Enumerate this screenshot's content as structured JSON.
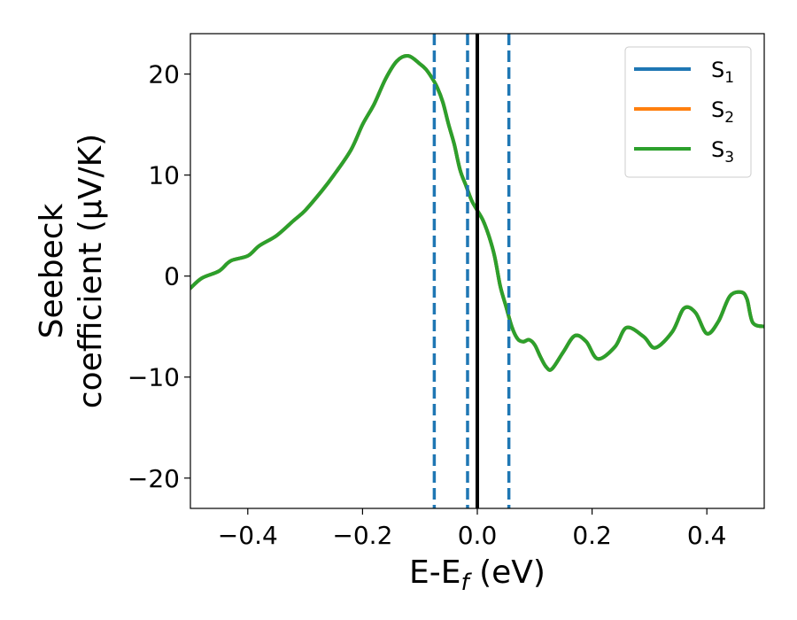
{
  "chart_data": {
    "type": "line",
    "xlim": [
      -0.5,
      0.5
    ],
    "ylim": [
      -23,
      24
    ],
    "x_ticks": [
      -0.4,
      -0.2,
      0.0,
      0.2,
      0.4
    ],
    "x_tick_labels": [
      "−0.4",
      "−0.2",
      "0.0",
      "0.2",
      "0.4"
    ],
    "y_ticks": [
      -20,
      -10,
      0,
      10,
      20
    ],
    "y_tick_labels": [
      "−20",
      "−10",
      "0",
      "10",
      "20"
    ],
    "xlabel": "E-E",
    "xlabel_sub": "f",
    "xlabel_unit": " (eV)",
    "ylabel_line1": "Seebeck",
    "ylabel_line2": "coefficient  (μV/K)",
    "legend_position": "top-right",
    "grid": false,
    "series": [
      {
        "name": "S",
        "sub": "1",
        "color": "#1f77b4"
      },
      {
        "name": "S",
        "sub": "2",
        "color": "#ff7f0e"
      },
      {
        "name": "S",
        "sub": "3",
        "color": "#2ca02c"
      }
    ],
    "curve": {
      "x": [
        -0.5,
        -0.48,
        -0.45,
        -0.43,
        -0.4,
        -0.38,
        -0.35,
        -0.32,
        -0.3,
        -0.27,
        -0.25,
        -0.22,
        -0.2,
        -0.18,
        -0.16,
        -0.14,
        -0.12,
        -0.1,
        -0.09,
        -0.08,
        -0.07,
        -0.06,
        -0.05,
        -0.04,
        -0.03,
        -0.02,
        -0.01,
        0.0,
        0.01,
        0.02,
        0.03,
        0.04,
        0.05,
        0.06,
        0.07,
        0.08,
        0.09,
        0.1,
        0.11,
        0.12,
        0.13,
        0.15,
        0.17,
        0.19,
        0.21,
        0.24,
        0.26,
        0.29,
        0.31,
        0.34,
        0.36,
        0.38,
        0.4,
        0.42,
        0.44,
        0.46,
        0.47,
        0.48,
        0.5
      ],
      "y": [
        -1.2,
        -0.2,
        0.5,
        1.5,
        2.0,
        3.0,
        4.0,
        5.5,
        6.5,
        8.5,
        10.0,
        12.5,
        15.0,
        17.0,
        19.5,
        21.3,
        21.8,
        21.0,
        20.5,
        19.7,
        18.7,
        17.2,
        15.0,
        13.0,
        10.5,
        9.0,
        7.5,
        6.5,
        5.5,
        4.0,
        2.0,
        -1.0,
        -3.0,
        -5.0,
        -6.2,
        -6.5,
        -6.3,
        -6.8,
        -8.0,
        -9.0,
        -9.2,
        -7.5,
        -5.9,
        -6.5,
        -8.2,
        -7.0,
        -5.1,
        -6.0,
        -7.1,
        -5.5,
        -3.2,
        -3.6,
        -5.7,
        -4.5,
        -2.0,
        -1.6,
        -2.3,
        -4.6,
        -5.0
      ]
    },
    "vlines": [
      {
        "x": -0.075,
        "style": "dashed",
        "color": "#1f77b4"
      },
      {
        "x": -0.017,
        "style": "dashed",
        "color": "#1f77b4"
      },
      {
        "x": 0.0,
        "style": "solid",
        "color": "#000000"
      },
      {
        "x": 0.055,
        "style": "dashed",
        "color": "#1f77b4"
      }
    ]
  }
}
